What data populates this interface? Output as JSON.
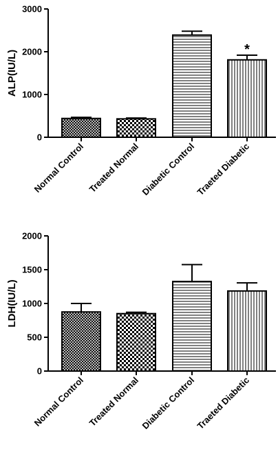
{
  "chart_data": [
    {
      "type": "bar",
      "categories": [
        "Normal Control",
        "Treated Normal",
        "Diabetic Control",
        "Traeted Diabetic"
      ],
      "values": [
        440,
        430,
        2390,
        1810
      ],
      "errors": [
        25,
        20,
        90,
        110
      ],
      "significance": [
        "",
        "",
        "",
        "*"
      ],
      "patterns": [
        "crosshatch",
        "checker",
        "horizontal",
        "vertical"
      ],
      "ylabel": "ALP(IU/L)",
      "ylim": [
        0,
        3000
      ],
      "yticks": [
        0,
        1000,
        2000,
        3000
      ],
      "grid": false
    },
    {
      "type": "bar",
      "categories": [
        "Normal Control",
        "Treated Normal",
        "Diabetic Control",
        "Traeted Diabetic"
      ],
      "values": [
        875,
        850,
        1325,
        1185
      ],
      "errors": [
        125,
        20,
        250,
        120
      ],
      "significance": [
        "",
        "",
        "",
        ""
      ],
      "patterns": [
        "crosshatch",
        "checker",
        "horizontal",
        "vertical"
      ],
      "ylabel": "LDH(IU/L)",
      "ylim": [
        0,
        2000
      ],
      "yticks": [
        0,
        500,
        1000,
        1500,
        2000
      ],
      "grid": false
    }
  ]
}
